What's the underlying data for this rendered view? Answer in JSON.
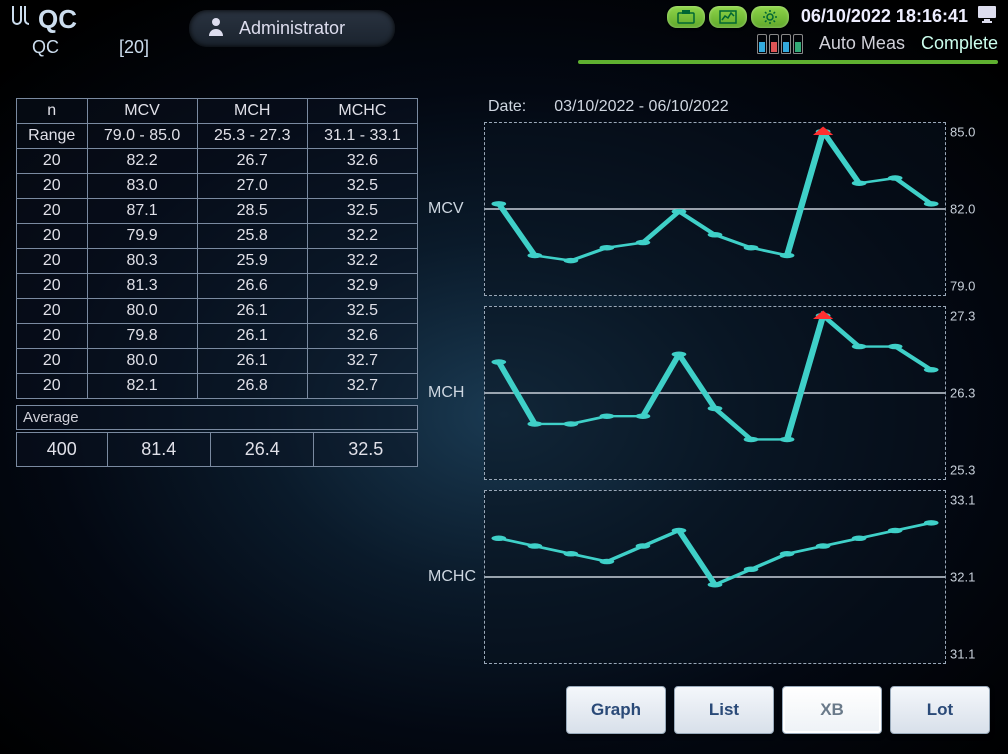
{
  "header": {
    "title_top": "QC",
    "title_sub": "QC",
    "lot_badge": "[20]",
    "user_label": "Administrator",
    "datetime": "06/10/2022 18:16:41",
    "mode_label": "Auto Meas",
    "status_label": "Complete",
    "icon_colors": {
      "pill_bg_top": "#8fd64a",
      "pill_bg_bot": "#5fa82a"
    }
  },
  "table": {
    "columns": [
      "n",
      "MCV",
      "MCH",
      "MCHC"
    ],
    "range_label": "Range",
    "ranges": [
      "79.0 - 85.0",
      "25.3 - 27.3",
      "31.1 - 33.1"
    ],
    "rows": [
      [
        "20",
        "82.2",
        "26.7",
        "32.6"
      ],
      [
        "20",
        "83.0",
        "27.0",
        "32.5"
      ],
      [
        "20",
        "87.1",
        "28.5",
        "32.5"
      ],
      [
        "20",
        "79.9",
        "25.8",
        "32.2"
      ],
      [
        "20",
        "80.3",
        "25.9",
        "32.2"
      ],
      [
        "20",
        "81.3",
        "26.6",
        "32.9"
      ],
      [
        "20",
        "80.0",
        "26.1",
        "32.5"
      ],
      [
        "20",
        "79.8",
        "26.1",
        "32.6"
      ],
      [
        "20",
        "80.0",
        "26.1",
        "32.7"
      ],
      [
        "20",
        "82.1",
        "26.8",
        "32.7"
      ]
    ],
    "average_label": "Average",
    "average_row": [
      "400",
      "81.4",
      "26.4",
      "32.5"
    ]
  },
  "date_section": {
    "label": "Date:",
    "range": "03/10/2022 - 06/10/2022"
  },
  "charts": {
    "line_color": "#3fd0c8",
    "marker_color": "#3fd0c8",
    "grid_color": "#8a98a8",
    "alert_color": "#ff3030",
    "background": "rgba(8,18,30,0.5)",
    "series": [
      {
        "label": "MCV",
        "ylim": [
          79.0,
          85.0
        ],
        "mid": 82.0,
        "ticks": [
          "85.0",
          "82.0",
          "79.0"
        ],
        "values": [
          82.2,
          80.2,
          80.0,
          80.5,
          80.7,
          81.9,
          81.0,
          80.5,
          80.2,
          87.1,
          83.0,
          83.2,
          82.2
        ],
        "alert_index": 9
      },
      {
        "label": "MCH",
        "ylim": [
          25.3,
          27.3
        ],
        "mid": 26.3,
        "ticks": [
          "27.3",
          "26.3",
          "25.3"
        ],
        "values": [
          26.7,
          25.9,
          25.9,
          26.0,
          26.0,
          26.8,
          26.1,
          25.7,
          25.7,
          28.5,
          26.9,
          26.9,
          26.6
        ],
        "alert_index": 9
      },
      {
        "label": "MCHC",
        "ylim": [
          31.1,
          33.1
        ],
        "mid": 32.1,
        "ticks": [
          "33.1",
          "32.1",
          "31.1"
        ],
        "values": [
          32.6,
          32.5,
          32.4,
          32.3,
          32.5,
          32.7,
          32.0,
          32.2,
          32.4,
          32.5,
          32.6,
          32.7,
          32.8
        ],
        "alert_index": null
      }
    ]
  },
  "buttons": {
    "items": [
      {
        "label": "Graph",
        "active": false
      },
      {
        "label": "List",
        "active": false
      },
      {
        "label": "XB",
        "active": true
      },
      {
        "label": "Lot",
        "active": false
      }
    ]
  },
  "colors": {
    "accent_green": "#5fb030",
    "text": "#d0d0d8"
  }
}
